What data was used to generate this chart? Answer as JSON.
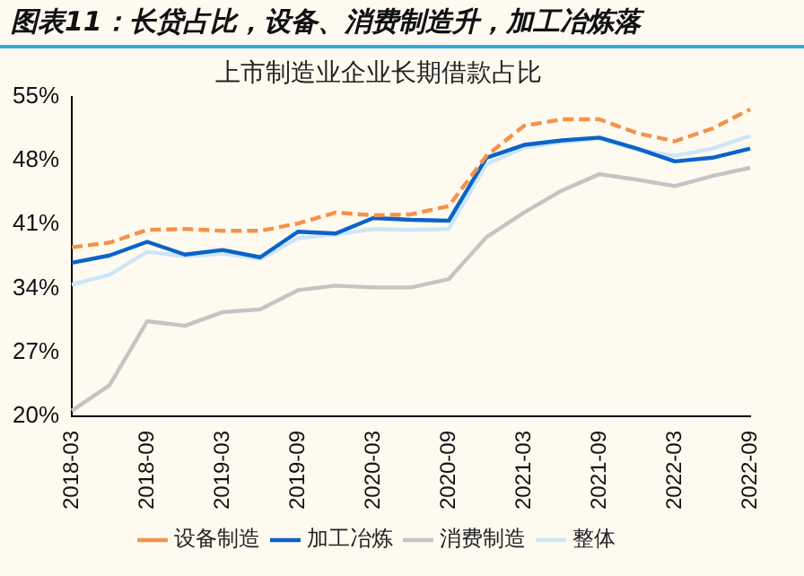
{
  "chart_data": {
    "type": "line",
    "title": "图表11：长贷占比，设备、消费制造升，加工冶炼落",
    "subtitle": "上市制造业企业长期借款占比",
    "categories": [
      "2018-03",
      null,
      "2018-09",
      null,
      "2019-03",
      null,
      "2019-09",
      null,
      "2020-03",
      null,
      "2020-09",
      null,
      "2021-03",
      null,
      "2021-09",
      null,
      "2022-03",
      null,
      "2022-09"
    ],
    "series": [
      {
        "name": "设备制造",
        "color": "#f4924a",
        "line_style": "dashed",
        "values": [
          38.5,
          39.0,
          40.4,
          40.5,
          40.3,
          40.3,
          41.1,
          42.3,
          42.0,
          42.1,
          43.0,
          48.5,
          51.8,
          52.5,
          52.5,
          51.0,
          50.1,
          51.5,
          53.6
        ]
      },
      {
        "name": "加工冶炼",
        "color": "#0a63c9",
        "line_style": "solid",
        "values": [
          36.8,
          37.6,
          39.1,
          37.7,
          38.2,
          37.4,
          40.2,
          40.0,
          41.7,
          41.5,
          41.4,
          48.3,
          49.7,
          50.2,
          50.5,
          49.3,
          47.9,
          48.3,
          49.3
        ]
      },
      {
        "name": "消费制造",
        "color": "#c4c4c4",
        "line_style": "solid",
        "values": [
          20.6,
          23.4,
          30.4,
          29.9,
          31.4,
          31.7,
          33.8,
          34.3,
          34.1,
          34.1,
          35.0,
          39.6,
          42.3,
          44.7,
          46.5,
          45.9,
          45.2,
          46.3,
          47.2
        ]
      },
      {
        "name": "整体",
        "color": "#cde6f7",
        "line_style": "solid",
        "values": [
          34.4,
          35.5,
          38.0,
          37.5,
          37.8,
          37.2,
          39.5,
          39.9,
          40.5,
          40.4,
          40.5,
          47.6,
          49.4,
          50.0,
          50.4,
          49.2,
          48.5,
          49.3,
          50.7
        ]
      }
    ],
    "ylim": [
      20,
      55
    ],
    "yticks": [
      {
        "value": 20,
        "label": "20%"
      },
      {
        "value": 27,
        "label": "27%"
      },
      {
        "value": 34,
        "label": "34%"
      },
      {
        "value": 41,
        "label": "41%"
      },
      {
        "value": 48,
        "label": "48%"
      },
      {
        "value": 55,
        "label": "55%"
      }
    ],
    "grid": false,
    "legend": "bottom",
    "marker": "none"
  }
}
